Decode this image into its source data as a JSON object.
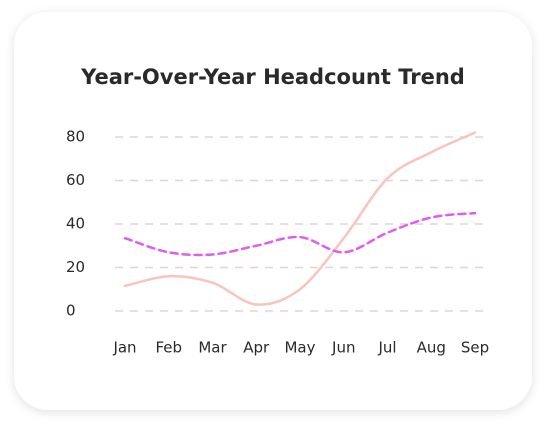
{
  "chart_data": {
    "type": "line",
    "title": "Year-Over-Year Headcount Trend",
    "categories": [
      "Jan",
      "Feb",
      "Mar",
      "Apr",
      "May",
      "Jun",
      "Jul",
      "Aug",
      "Sep"
    ],
    "series": [
      {
        "color": "#f9c4bd",
        "dash": false,
        "values": [
          11.5,
          16,
          13,
          3,
          10,
          33.5,
          61,
          73,
          82
        ]
      },
      {
        "color": "#e05cf0",
        "dash": true,
        "values": [
          33.5,
          27,
          26,
          30,
          34,
          27,
          36,
          43,
          45
        ]
      }
    ],
    "ylim": [
      0,
      80
    ],
    "yticks": [
      0,
      20,
      40,
      60,
      80
    ],
    "grid": true
  }
}
